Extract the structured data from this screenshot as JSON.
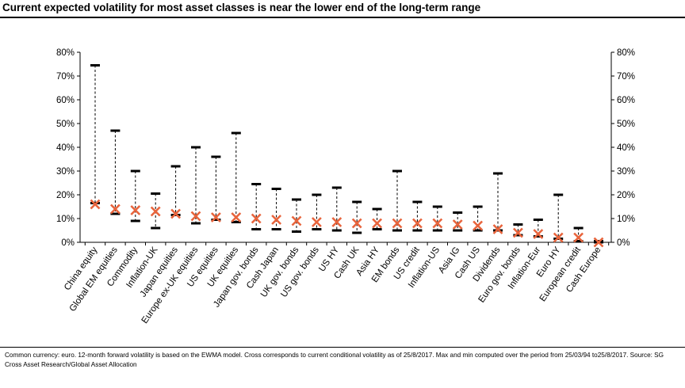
{
  "chart_data": {
    "type": "range",
    "title": "Current expected volatility for most asset classes is near the lower end of the long-term range",
    "ylim": [
      0,
      80
    ],
    "yticks": [
      "0%",
      "10%",
      "20%",
      "30%",
      "40%",
      "50%",
      "60%",
      "70%",
      "80%"
    ],
    "yaxis_both_sides": true,
    "grid": false,
    "series": [
      {
        "name": "Max",
        "marker": "dash"
      },
      {
        "name": "Min",
        "marker": "dash"
      },
      {
        "name": "Current",
        "marker": "cross"
      }
    ],
    "categories": [
      "China equity",
      "Global EM equities",
      "Commodity",
      "Inflation-UK",
      "Japan equities",
      "Europe ex-UK equities",
      "US equities",
      "UK equities",
      "Japan gov. bonds",
      "Cash Japan",
      "UK gov. bonds",
      "US gov. bonds",
      "US HY",
      "Cash UK",
      "Asia HY",
      "EM bonds",
      "US credit",
      "Inflation-US",
      "Asia IG",
      "Cash US",
      "Dividends",
      "Euro gov. bonds",
      "Inflation-Eur",
      "Euro HY",
      "European credit",
      "Cash Europe"
    ],
    "max": [
      74.5,
      47,
      30,
      20.5,
      32,
      40,
      36,
      46,
      24.5,
      22.5,
      18,
      20,
      23,
      17,
      14,
      30,
      17,
      15,
      12.5,
      15,
      29,
      7.5,
      9.5,
      20,
      6,
      0.5
    ],
    "min": [
      16.5,
      12,
      9,
      6,
      11.5,
      8,
      9.5,
      8.5,
      5.5,
      5.5,
      4.5,
      5.5,
      5,
      4,
      5.5,
      5,
      5,
      5,
      5,
      5,
      5,
      3,
      2.5,
      1.5,
      0.5,
      0
    ],
    "current": [
      16,
      14,
      13.5,
      13,
      12,
      11,
      10.5,
      10.5,
      10,
      9.5,
      9,
      8.5,
      8.5,
      8,
      8,
      8,
      8,
      8,
      7.5,
      7,
      5.5,
      4,
      3.5,
      2,
      2,
      0
    ]
  },
  "footnote": "Common currency: euro. 12-month forward volatility is based on the EWMA model. Cross corresponds to current conditional volatility as of 25/8/2017. Max and min computed over the period from 25/03/94 to25/8/2017. Source: SG Cross Asset Research/Global Asset Allocation",
  "colors": {
    "cross": "#e8643c",
    "axis": "#000000",
    "text": "#000000"
  }
}
